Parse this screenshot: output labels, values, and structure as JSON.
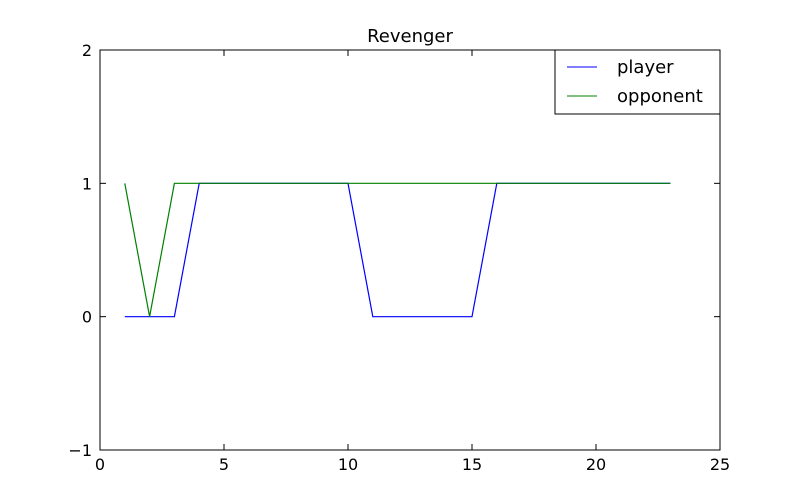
{
  "chart_data": {
    "type": "line",
    "title": "Revenger",
    "xlabel": "",
    "ylabel": "",
    "xlim": [
      0,
      25
    ],
    "ylim": [
      -1,
      2
    ],
    "xticks": [
      0,
      5,
      10,
      15,
      20,
      25
    ],
    "yticks": [
      -1,
      0,
      1,
      2
    ],
    "xtick_labels": [
      "0",
      "5",
      "10",
      "15",
      "20",
      "25"
    ],
    "ytick_labels": [
      "−1",
      "0",
      "1",
      "2"
    ],
    "grid": false,
    "legend_position": "top-right",
    "x": [
      1,
      2,
      3,
      4,
      5,
      6,
      7,
      8,
      9,
      10,
      11,
      12,
      13,
      14,
      15,
      16,
      17,
      18,
      19,
      20,
      21,
      22,
      23
    ],
    "series": [
      {
        "name": "player",
        "color": "#0000ff",
        "values": [
          0,
          0,
          0,
          1,
          1,
          1,
          1,
          1,
          1,
          1,
          0,
          0,
          0,
          0,
          0,
          1,
          1,
          1,
          1,
          1,
          1,
          1,
          1
        ]
      },
      {
        "name": "opponent",
        "color": "#008000",
        "values": [
          1,
          0,
          1,
          1,
          1,
          1,
          1,
          1,
          1,
          1,
          1,
          1,
          1,
          1,
          1,
          1,
          1,
          1,
          1,
          1,
          1,
          1,
          1
        ]
      }
    ]
  }
}
